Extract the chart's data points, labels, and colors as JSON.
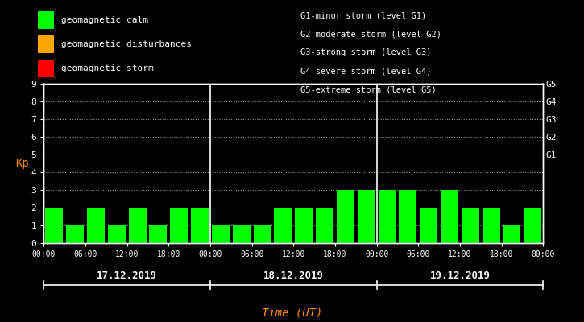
{
  "background_color": "#000000",
  "plot_bg_color": "#000000",
  "bar_color_calm": "#00ff00",
  "bar_color_disturbance": "#ffa500",
  "bar_color_storm": "#ff0000",
  "text_color": "#ffffff",
  "kp_label_color": "#ff8c00",
  "time_label_color": "#ff8c00",
  "grid_color": "#ffffff",
  "separator_color": "#ffffff",
  "days": [
    "17.12.2019",
    "18.12.2019",
    "19.12.2019"
  ],
  "kp_values": [
    2,
    1,
    2,
    1,
    2,
    1,
    2,
    2,
    1,
    1,
    1,
    2,
    2,
    2,
    3,
    3,
    3,
    3,
    2,
    3,
    2,
    2,
    1,
    2
  ],
  "ylim": [
    0,
    9
  ],
  "yticks": [
    0,
    1,
    2,
    3,
    4,
    5,
    6,
    7,
    8,
    9
  ],
  "legend_left": [
    {
      "color": "#00ff00",
      "label": "geomagnetic calm"
    },
    {
      "color": "#ffa500",
      "label": "geomagnetic disturbances"
    },
    {
      "color": "#ff0000",
      "label": "geomagnetic storm"
    }
  ],
  "legend_right_lines": [
    "G1-minor storm (level G1)",
    "G2-moderate storm (level G2)",
    "G3-strong storm (level G3)",
    "G4-severe storm (level G4)",
    "G5-extreme storm (level G5)"
  ],
  "xlabel": "Time (UT)",
  "ylabel": "Kp",
  "time_ticks": [
    "00:00",
    "06:00",
    "12:00",
    "18:00",
    "00:00",
    "06:00",
    "12:00",
    "18:00",
    "00:00",
    "06:00",
    "12:00",
    "18:00",
    "00:00"
  ],
  "right_yticks": [
    5,
    6,
    7,
    8,
    9
  ],
  "right_yticklabels": [
    "G1",
    "G2",
    "G3",
    "G4",
    "G5"
  ]
}
